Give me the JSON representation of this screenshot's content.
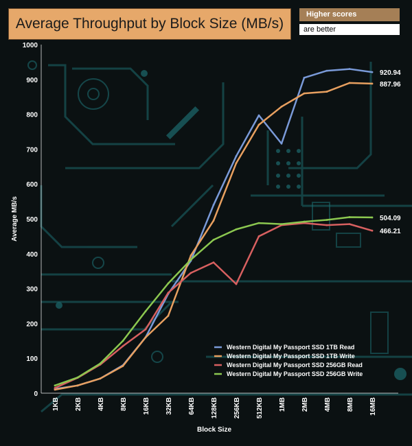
{
  "header": {
    "title": "Average Throughput by Block Size (MB/s)",
    "badge_top": "Higher scores",
    "badge_bottom": "are better"
  },
  "chart_data": {
    "type": "line",
    "title": "Average Throughput by Block Size (MB/s)",
    "xlabel": "Block Size",
    "ylabel": "Average MB/s",
    "ylim": [
      0,
      1000
    ],
    "yticks": [
      0,
      100,
      200,
      300,
      400,
      500,
      600,
      700,
      800,
      900,
      1000
    ],
    "grid": false,
    "legend_position": "bottom-right",
    "categories": [
      "1KB",
      "2KB",
      "4KB",
      "8KB",
      "16KB",
      "32KB",
      "64KB",
      "128KB",
      "256KB",
      "512KB",
      "1MB",
      "2MB",
      "4MB",
      "8MB",
      "16MB"
    ],
    "series": [
      {
        "name": "Western Digital My Passport SSD 1TB Read",
        "color": "#7a9ad8",
        "values": [
          12,
          22,
          42,
          80,
          160,
          285,
          380,
          540,
          680,
          797,
          716,
          905,
          925,
          930,
          920.94
        ],
        "end_label": "920.94"
      },
      {
        "name": "Western Digital My Passport SSD 1TB Write",
        "color": "#e8a060",
        "values": [
          10,
          22,
          42,
          78,
          160,
          222,
          395,
          495,
          660,
          770,
          822,
          860,
          865,
          890,
          887.96
        ],
        "end_label": "887.96"
      },
      {
        "name": "Western Digital My Passport SSD 256GB Read",
        "color": "#d86060",
        "values": [
          15,
          44,
          82,
          135,
          183,
          288,
          345,
          375,
          313,
          450,
          482,
          488,
          482,
          485,
          466.21
        ],
        "end_label": "466.21"
      },
      {
        "name": "Western Digital My Passport SSD 256GB Write",
        "color": "#8cc850",
        "values": [
          22,
          45,
          85,
          150,
          235,
          315,
          383,
          440,
          470,
          488,
          485,
          492,
          497,
          505,
          504.09
        ],
        "end_label": "504.09"
      }
    ]
  }
}
